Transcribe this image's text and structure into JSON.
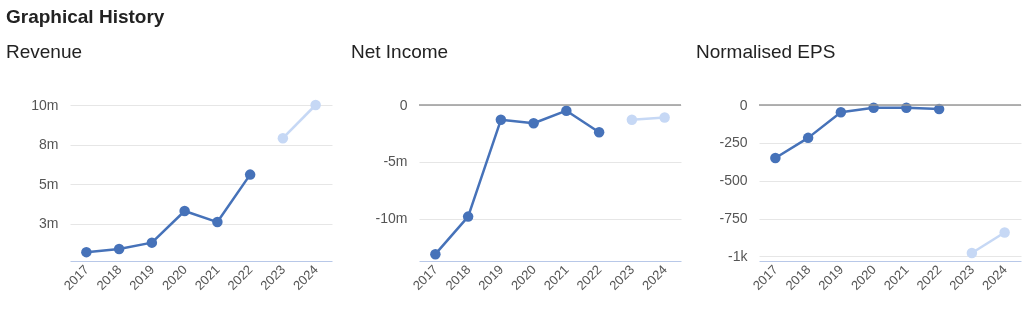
{
  "chart_data": [
    {
      "type": "line",
      "title": "Revenue",
      "annotations": [
        "Graphical History"
      ],
      "categories": [
        "2017",
        "2018",
        "2019",
        "2020",
        "2021",
        "2022",
        "2023",
        "2024"
      ],
      "series": [
        {
          "color": "#4672b9",
          "values": [
            0.7,
            0.9,
            1.3,
            3.3,
            2.6,
            5.6,
            null,
            null
          ]
        },
        {
          "color": "#c6d8f5",
          "values": [
            null,
            null,
            null,
            null,
            null,
            null,
            7.9,
            10
          ]
        }
      ],
      "ylim": [
        0.14,
        10
      ],
      "yticks": [
        {
          "value": 2.5,
          "label": "3m"
        },
        {
          "value": 5,
          "label": "5m"
        },
        {
          "value": 7.5,
          "label": "8m"
        },
        {
          "value": 10,
          "label": "10m"
        }
      ],
      "grid": "y",
      "marker": "circle",
      "line_style": "solid"
    },
    {
      "type": "line",
      "title": "Net Income",
      "categories": [
        "2017",
        "2018",
        "2019",
        "2020",
        "2021",
        "2022",
        "2023",
        "2024"
      ],
      "series": [
        {
          "color": "#4672b9",
          "values": [
            -13.1,
            -9.8,
            -1.3,
            -1.6,
            -0.5,
            -2.4,
            null,
            null
          ]
        },
        {
          "color": "#c6d8f5",
          "values": [
            null,
            null,
            null,
            null,
            null,
            null,
            -1.3,
            -1.1
          ]
        }
      ],
      "ylim": [
        -13.7,
        0
      ],
      "yticks": [
        {
          "value": -10,
          "label": "-10m"
        },
        {
          "value": -5,
          "label": "-5m"
        },
        0
      ],
      "grid": "y",
      "marker": "circle",
      "line_style": "solid",
      "ref_lines": [
        {
          "axis": "y",
          "value": 0,
          "color": "#999999"
        }
      ]
    },
    {
      "type": "line",
      "title": "Normalised EPS",
      "categories": [
        "2017",
        "2018",
        "2019",
        "2020",
        "2021",
        "2022",
        "2023",
        "2024"
      ],
      "series": [
        {
          "color": "#4672b9",
          "values": [
            -350,
            -217,
            -48,
            -18,
            -18,
            -27,
            null,
            null
          ]
        },
        {
          "color": "#c6d8f5",
          "values": [
            null,
            null,
            null,
            null,
            null,
            null,
            -977,
            -842
          ]
        }
      ],
      "ylim": [
        -1030,
        0
      ],
      "yticks": [
        {
          "value": -1000,
          "label": "-1k"
        },
        -750,
        -500,
        -250,
        0
      ],
      "grid": "y",
      "marker": "circle",
      "line_style": "solid",
      "ref_lines": [
        {
          "axis": "y",
          "value": 0,
          "color": "#999999"
        }
      ]
    }
  ]
}
